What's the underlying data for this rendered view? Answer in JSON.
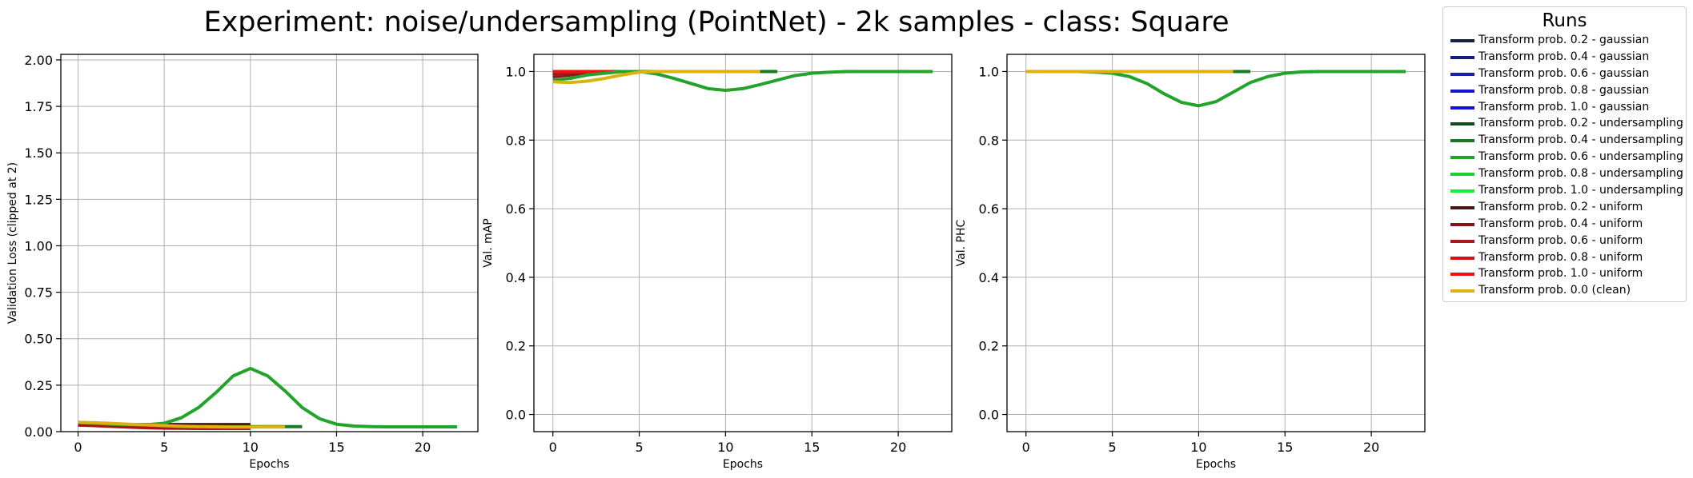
{
  "title": "Experiment: noise/undersampling (PointNet) - 2k samples - class: Square",
  "legend": {
    "title": "Runs",
    "items": [
      {
        "label": "Transform prob. 0.2 - gaussian",
        "color": "#14204a"
      },
      {
        "label": "Transform prob. 0.4 - gaussian",
        "color": "#141e7a"
      },
      {
        "label": "Transform prob. 0.6 - gaussian",
        "color": "#1620a8"
      },
      {
        "label": "Transform prob. 0.8 - gaussian",
        "color": "#1418c8"
      },
      {
        "label": "Transform prob. 1.0 - gaussian",
        "color": "#1212e0"
      },
      {
        "label": "Transform prob. 0.2 - undersampling",
        "color": "#134a1c"
      },
      {
        "label": "Transform prob. 0.4 - undersampling",
        "color": "#1a7a24"
      },
      {
        "label": "Transform prob. 0.6 - undersampling",
        "color": "#22a42a"
      },
      {
        "label": "Transform prob. 0.8 - undersampling",
        "color": "#1ed02e"
      },
      {
        "label": "Transform prob. 1.0 - undersampling",
        "color": "#18f030"
      },
      {
        "label": "Transform prob. 0.2 - uniform",
        "color": "#4a1212"
      },
      {
        "label": "Transform prob. 0.4 - uniform",
        "color": "#7a1818"
      },
      {
        "label": "Transform prob. 0.6 - uniform",
        "color": "#a81818"
      },
      {
        "label": "Transform prob. 0.8 - uniform",
        "color": "#d01414"
      },
      {
        "label": "Transform prob. 1.0 - uniform",
        "color": "#f01212"
      },
      {
        "label": "Transform prob. 0.0 (clean)",
        "color": "#ddb10f"
      }
    ]
  },
  "chart_data": [
    {
      "type": "line",
      "xlabel": "Epochs",
      "ylabel": "Validation Loss (clipped at 2)",
      "xlim": [
        -1,
        23.2
      ],
      "ylim": [
        0,
        2.03
      ],
      "xticks": [
        0,
        5,
        10,
        15,
        20
      ],
      "yticks": [
        0.0,
        0.25,
        0.5,
        0.75,
        1.0,
        1.25,
        1.5,
        1.75,
        2.0
      ],
      "ytick_labels": [
        "0.00",
        "0.25",
        "0.50",
        "0.75",
        "1.00",
        "1.25",
        "1.50",
        "1.75",
        "2.00"
      ],
      "grid": true,
      "series": [
        {
          "name": "Transform prob. 0.2 - uniform",
          "color": "#4a1212",
          "x": [
            0,
            1,
            2,
            3,
            4,
            5,
            6,
            7,
            8,
            9,
            10
          ],
          "y": [
            0.04,
            0.039,
            0.038,
            0.038,
            0.038,
            0.038,
            0.038,
            0.038,
            0.038,
            0.038,
            0.038
          ]
        },
        {
          "name": "Transform prob. 0.4 - undersampling",
          "color": "#1a7a24",
          "x": [
            0,
            1,
            2,
            3,
            4,
            5,
            6,
            7,
            8,
            9,
            10,
            11,
            12,
            13
          ],
          "y": [
            0.045,
            0.042,
            0.038,
            0.035,
            0.032,
            0.03,
            0.029,
            0.028,
            0.028,
            0.027,
            0.027,
            0.027,
            0.027,
            0.027
          ]
        },
        {
          "name": "Transform prob. 0.6 - uniform",
          "color": "#a81818",
          "x": [
            0,
            1,
            2,
            3,
            4,
            5,
            6,
            7,
            8,
            9,
            10
          ],
          "y": [
            0.035,
            0.032,
            0.028,
            0.024,
            0.021,
            0.019,
            0.018,
            0.017,
            0.017,
            0.017,
            0.017
          ]
        },
        {
          "name": "Transform prob. 0.6 - undersampling",
          "color": "#22a42a",
          "x": [
            0,
            1,
            2,
            3,
            4,
            5,
            6,
            7,
            8,
            9,
            10,
            11,
            12,
            13,
            14,
            15,
            16,
            17,
            18,
            19,
            20,
            21,
            22
          ],
          "y": [
            0.05,
            0.045,
            0.04,
            0.038,
            0.037,
            0.045,
            0.075,
            0.13,
            0.21,
            0.3,
            0.34,
            0.3,
            0.22,
            0.13,
            0.07,
            0.04,
            0.03,
            0.027,
            0.026,
            0.026,
            0.026,
            0.026,
            0.026
          ]
        },
        {
          "name": "Transform prob. 0.0 (clean)",
          "color": "#ddb10f",
          "x": [
            0,
            1,
            2,
            3,
            4,
            5,
            6,
            7,
            8,
            9,
            10,
            11,
            12
          ],
          "y": [
            0.05,
            0.048,
            0.044,
            0.04,
            0.036,
            0.032,
            0.029,
            0.027,
            0.026,
            0.025,
            0.025,
            0.025,
            0.025
          ]
        }
      ]
    },
    {
      "type": "line",
      "xlabel": "Epochs",
      "ylabel": "Val. mAP",
      "xlim": [
        -1.1,
        23.1
      ],
      "ylim": [
        -0.05,
        1.05
      ],
      "xticks": [
        0,
        5,
        10,
        15,
        20
      ],
      "yticks": [
        0.0,
        0.2,
        0.4,
        0.6,
        0.8,
        1.0
      ],
      "ytick_labels": [
        "0.0",
        "0.2",
        "0.4",
        "0.6",
        "0.8",
        "1.0"
      ],
      "grid": true,
      "series": [
        {
          "name": "Transform prob. 0.4 - undersampling",
          "color": "#1a7a24",
          "x": [
            0,
            1,
            2,
            3,
            4,
            5,
            6,
            7,
            8,
            9,
            10,
            11,
            12,
            13
          ],
          "y": [
            1.0,
            1.0,
            1.0,
            1.0,
            1.0,
            1.0,
            1.0,
            1.0,
            1.0,
            1.0,
            1.0,
            1.0,
            1.0,
            1.0
          ]
        },
        {
          "name": "Transform prob. 0.2 - uniform",
          "color": "#4a1212",
          "x": [
            0,
            1,
            2,
            3,
            4,
            5,
            6,
            7,
            8,
            9,
            10
          ],
          "y": [
            0.995,
            1.0,
            1.0,
            1.0,
            1.0,
            1.0,
            1.0,
            1.0,
            1.0,
            1.0,
            1.0
          ]
        },
        {
          "name": "Transform prob. 0.4 - uniform",
          "color": "#7a1818",
          "x": [
            0,
            1,
            2,
            3,
            4,
            5,
            6,
            7,
            8,
            9,
            10
          ],
          "y": [
            0.985,
            0.99,
            0.995,
            1.0,
            1.0,
            1.0,
            1.0,
            1.0,
            1.0,
            1.0,
            1.0
          ]
        },
        {
          "name": "Transform prob. 0.6 - uniform",
          "color": "#a81818",
          "x": [
            0,
            1,
            2,
            3,
            4,
            5,
            6,
            7,
            8,
            9,
            10
          ],
          "y": [
            0.99,
            0.995,
            1.0,
            1.0,
            1.0,
            1.0,
            1.0,
            1.0,
            1.0,
            1.0,
            1.0
          ]
        },
        {
          "name": "Transform prob. 0.8 - uniform",
          "color": "#d01414",
          "x": [
            0,
            1,
            2,
            3,
            4,
            5,
            6,
            7,
            8,
            9,
            10
          ],
          "y": [
            1.0,
            1.0,
            1.0,
            1.0,
            1.0,
            1.0,
            1.0,
            1.0,
            1.0,
            1.0,
            1.0
          ]
        },
        {
          "name": "Transform prob. 1.0 - uniform",
          "color": "#f01212",
          "x": [
            0,
            1,
            2,
            3,
            4,
            5,
            6,
            7,
            8,
            9,
            10
          ],
          "y": [
            1.0,
            1.0,
            1.0,
            1.0,
            1.0,
            1.0,
            1.0,
            1.0,
            1.0,
            1.0,
            1.0
          ]
        },
        {
          "name": "Transform prob. 0.6 - undersampling",
          "color": "#22a42a",
          "x": [
            0,
            1,
            2,
            3,
            4,
            5,
            6,
            7,
            8,
            9,
            10,
            11,
            12,
            13,
            14,
            15,
            16,
            17,
            18,
            19,
            20,
            21,
            22
          ],
          "y": [
            0.975,
            0.98,
            0.99,
            0.995,
            1.0,
            1.0,
            0.993,
            0.98,
            0.965,
            0.95,
            0.945,
            0.95,
            0.962,
            0.975,
            0.988,
            0.995,
            0.998,
            1.0,
            1.0,
            1.0,
            1.0,
            1.0,
            1.0
          ]
        },
        {
          "name": "Transform prob. 0.0 (clean)",
          "color": "#ddb10f",
          "x": [
            0,
            1,
            2,
            3,
            4,
            5,
            6,
            7,
            8,
            9,
            10,
            11,
            12
          ],
          "y": [
            0.97,
            0.968,
            0.972,
            0.98,
            0.99,
            0.998,
            1.0,
            1.0,
            1.0,
            1.0,
            1.0,
            1.0,
            1.0
          ]
        }
      ]
    },
    {
      "type": "line",
      "xlabel": "Epochs",
      "ylabel": "Val. PHC",
      "xlim": [
        -1.1,
        23.1
      ],
      "ylim": [
        -0.05,
        1.05
      ],
      "xticks": [
        0,
        5,
        10,
        15,
        20
      ],
      "yticks": [
        0.0,
        0.2,
        0.4,
        0.6,
        0.8,
        1.0
      ],
      "ytick_labels": [
        "0.0",
        "0.2",
        "0.4",
        "0.6",
        "0.8",
        "1.0"
      ],
      "grid": true,
      "series": [
        {
          "name": "Transform prob. 0.4 - undersampling",
          "color": "#1a7a24",
          "x": [
            0,
            1,
            2,
            3,
            4,
            5,
            6,
            7,
            8,
            9,
            10,
            11,
            12,
            13
          ],
          "y": [
            1.0,
            1.0,
            1.0,
            1.0,
            1.0,
            1.0,
            1.0,
            1.0,
            1.0,
            1.0,
            1.0,
            1.0,
            1.0,
            1.0
          ]
        },
        {
          "name": "Transform prob. 0.6 - uniform",
          "color": "#a81818",
          "x": [
            0,
            1,
            2,
            3,
            4,
            5,
            6,
            7,
            8,
            9,
            10
          ],
          "y": [
            1.0,
            1.0,
            1.0,
            1.0,
            1.0,
            1.0,
            1.0,
            1.0,
            1.0,
            1.0,
            1.0
          ]
        },
        {
          "name": "Transform prob. 0.6 - undersampling",
          "color": "#22a42a",
          "x": [
            0,
            1,
            2,
            3,
            4,
            5,
            6,
            7,
            8,
            9,
            10,
            11,
            12,
            13,
            14,
            15,
            16,
            17,
            18,
            19,
            20,
            21,
            22
          ],
          "y": [
            1.0,
            1.0,
            1.0,
            1.0,
            0.998,
            0.995,
            0.985,
            0.965,
            0.935,
            0.91,
            0.9,
            0.912,
            0.94,
            0.968,
            0.985,
            0.995,
            0.999,
            1.0,
            1.0,
            1.0,
            1.0,
            1.0,
            1.0
          ]
        },
        {
          "name": "Transform prob. 0.0 (clean)",
          "color": "#ddb10f",
          "x": [
            0,
            1,
            2,
            3,
            4,
            5,
            6,
            7,
            8,
            9,
            10,
            11,
            12
          ],
          "y": [
            1.0,
            1.0,
            1.0,
            1.0,
            1.0,
            1.0,
            1.0,
            1.0,
            1.0,
            1.0,
            1.0,
            1.0,
            1.0
          ]
        }
      ]
    }
  ]
}
